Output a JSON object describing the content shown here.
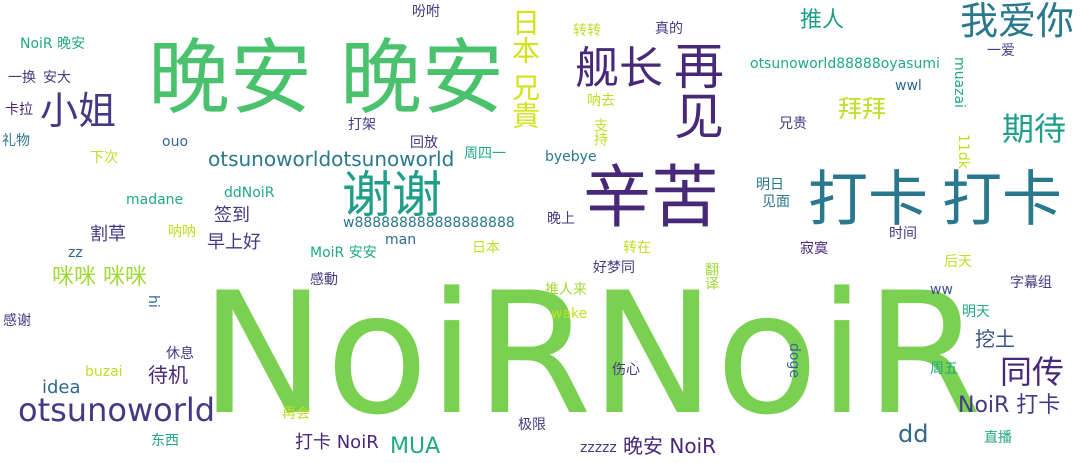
{
  "palette": {
    "light_green": "#7ad151",
    "green": "#4ac16d",
    "teal_green": "#22a884",
    "teal": "#1f9e89",
    "blue_teal": "#2a788e",
    "slate": "#31688e",
    "dark_purple": "#482878",
    "indigo": "#443983",
    "yellow_green": "#bddf26",
    "yellow": "#d2e21b",
    "lime": "#a0da39",
    "steel": "#3b528b"
  },
  "words": [
    {
      "text": "NoiR",
      "color": "light_green",
      "orientation": "horizontal"
    },
    {
      "text": "NoiR",
      "color": "light_green",
      "orientation": "horizontal"
    },
    {
      "text": "晚安",
      "color": "green",
      "orientation": "horizontal"
    },
    {
      "text": "晚安",
      "color": "green",
      "orientation": "horizontal"
    },
    {
      "text": "辛苦",
      "color": "dark_purple",
      "orientation": "horizontal"
    },
    {
      "text": "打卡",
      "color": "blue_teal",
      "orientation": "horizontal"
    },
    {
      "text": "打卡",
      "color": "blue_teal",
      "orientation": "horizontal"
    },
    {
      "text": "谢谢",
      "color": "teal",
      "orientation": "horizontal"
    },
    {
      "text": "再见",
      "color": "dark_purple",
      "orientation": "vertical"
    },
    {
      "text": "舰长",
      "color": "dark_purple",
      "orientation": "horizontal"
    },
    {
      "text": "我爱你",
      "color": "blue_teal",
      "orientation": "horizontal"
    },
    {
      "text": "日本 兄貴",
      "color": "yellow",
      "orientation": "vertical"
    },
    {
      "text": "小姐",
      "color": "indigo",
      "orientation": "horizontal"
    },
    {
      "text": "期待",
      "color": "teal",
      "orientation": "horizontal"
    },
    {
      "text": "同传",
      "color": "dark_purple",
      "orientation": "horizontal"
    },
    {
      "text": "otsunoworld",
      "color": "indigo",
      "orientation": "horizontal"
    },
    {
      "text": "otsunoworldotsunoworld",
      "color": "blue_teal",
      "orientation": "horizontal"
    },
    {
      "text": "咪咪 咪咪",
      "color": "lime",
      "orientation": "horizontal"
    },
    {
      "text": "拜拜",
      "color": "yellow_green",
      "orientation": "horizontal"
    },
    {
      "text": "推人",
      "color": "teal",
      "orientation": "horizontal"
    },
    {
      "text": "NoiR 打卡",
      "color": "indigo",
      "orientation": "horizontal"
    },
    {
      "text": "dd",
      "color": "slate",
      "orientation": "horizontal"
    },
    {
      "text": "挖土",
      "color": "steel",
      "orientation": "horizontal"
    },
    {
      "text": "晚安 NoiR",
      "color": "dark_purple",
      "orientation": "horizontal"
    },
    {
      "text": "打卡 NoiR",
      "color": "dark_purple",
      "orientation": "horizontal"
    },
    {
      "text": "MUA",
      "color": "teal_green",
      "orientation": "horizontal"
    },
    {
      "text": "待机",
      "color": "dark_purple",
      "orientation": "horizontal"
    },
    {
      "text": "idea",
      "color": "slate",
      "orientation": "horizontal"
    },
    {
      "text": "割草",
      "color": "indigo",
      "orientation": "horizontal"
    },
    {
      "text": "早上好",
      "color": "indigo",
      "orientation": "horizontal"
    },
    {
      "text": "签到",
      "color": "indigo",
      "orientation": "horizontal"
    },
    {
      "text": "otsunoworld88888oyasumi",
      "color": "teal_green",
      "orientation": "horizontal"
    },
    {
      "text": "w888888888888888888",
      "color": "blue_teal",
      "orientation": "horizontal"
    },
    {
      "text": "NoiR 晚安",
      "color": "teal_green",
      "orientation": "horizontal"
    },
    {
      "text": "一换",
      "color": "indigo",
      "orientation": "horizontal"
    },
    {
      "text": "安大",
      "color": "indigo",
      "orientation": "horizontal"
    },
    {
      "text": "卡拉",
      "color": "dark_purple",
      "orientation": "horizontal"
    },
    {
      "text": "礼物",
      "color": "blue_teal",
      "orientation": "horizontal"
    },
    {
      "text": "下次",
      "color": "yellow_green",
      "orientation": "horizontal"
    },
    {
      "text": "ouo",
      "color": "slate",
      "orientation": "horizontal"
    },
    {
      "text": "打架",
      "color": "indigo",
      "orientation": "horizontal"
    },
    {
      "text": "回放",
      "color": "indigo",
      "orientation": "horizontal"
    },
    {
      "text": "周四一",
      "color": "teal_green",
      "orientation": "horizontal"
    },
    {
      "text": "byebye",
      "color": "blue_teal",
      "orientation": "horizontal"
    },
    {
      "text": "madane",
      "color": "teal_green",
      "orientation": "horizontal"
    },
    {
      "text": "ddNoiR",
      "color": "teal_green",
      "orientation": "horizontal"
    },
    {
      "text": "吩咐",
      "color": "indigo",
      "orientation": "horizontal"
    },
    {
      "text": "转转",
      "color": "yellow_green",
      "orientation": "horizontal"
    },
    {
      "text": "真的",
      "color": "indigo",
      "orientation": "horizontal"
    },
    {
      "text": "呐去",
      "color": "yellow_green",
      "orientation": "horizontal"
    },
    {
      "text": "支持",
      "color": "yellow_green",
      "orientation": "vertical"
    },
    {
      "text": "兄贵",
      "color": "indigo",
      "orientation": "horizontal"
    },
    {
      "text": "wwl",
      "color": "slate",
      "orientation": "horizontal"
    },
    {
      "text": "muazai",
      "color": "teal_green",
      "orientation": "vertical"
    },
    {
      "text": "一爱",
      "color": "indigo",
      "orientation": "horizontal"
    },
    {
      "text": "11dk",
      "color": "yellow_green",
      "orientation": "vertical"
    },
    {
      "text": "明日",
      "color": "blue_teal",
      "orientation": "horizontal"
    },
    {
      "text": "见面",
      "color": "blue_teal",
      "orientation": "horizontal"
    },
    {
      "text": "晚上",
      "color": "indigo",
      "orientation": "horizontal"
    },
    {
      "text": "呐呐",
      "color": "yellow_green",
      "orientation": "horizontal"
    },
    {
      "text": "zz",
      "color": "slate",
      "orientation": "horizontal"
    },
    {
      "text": "MoiR 安安",
      "color": "teal_green",
      "orientation": "horizontal"
    },
    {
      "text": "man",
      "color": "slate",
      "orientation": "horizontal"
    },
    {
      "text": "日本",
      "color": "yellow_green",
      "orientation": "horizontal"
    },
    {
      "text": "转在",
      "color": "yellow_green",
      "orientation": "horizontal"
    },
    {
      "text": "寂寞",
      "color": "dark_purple",
      "orientation": "horizontal"
    },
    {
      "text": "时间",
      "color": "indigo",
      "orientation": "horizontal"
    },
    {
      "text": "后天",
      "color": "yellow_green",
      "orientation": "horizontal"
    },
    {
      "text": "好梦同",
      "color": "indigo",
      "orientation": "horizontal"
    },
    {
      "text": "翻译",
      "color": "lime",
      "orientation": "vertical"
    },
    {
      "text": "感動",
      "color": "indigo",
      "orientation": "horizontal"
    },
    {
      "text": "hi",
      "color": "slate",
      "orientation": "vertical"
    },
    {
      "text": "推人来",
      "color": "lime",
      "orientation": "horizontal"
    },
    {
      "text": "ww",
      "color": "steel",
      "orientation": "horizontal"
    },
    {
      "text": "字幕组",
      "color": "indigo",
      "orientation": "horizontal"
    },
    {
      "text": "感谢",
      "color": "indigo",
      "orientation": "horizontal"
    },
    {
      "text": "wake",
      "color": "yellow_green",
      "orientation": "horizontal"
    },
    {
      "text": "明天",
      "color": "teal_green",
      "orientation": "horizontal"
    },
    {
      "text": "休息",
      "color": "indigo",
      "orientation": "horizontal"
    },
    {
      "text": "doge",
      "color": "slate",
      "orientation": "vertical"
    },
    {
      "text": "buzai",
      "color": "yellow_green",
      "orientation": "horizontal"
    },
    {
      "text": "伤心",
      "color": "indigo",
      "orientation": "horizontal"
    },
    {
      "text": "周五",
      "color": "teal_green",
      "orientation": "horizontal"
    },
    {
      "text": "再会",
      "color": "yellow_green",
      "orientation": "horizontal"
    },
    {
      "text": "东西",
      "color": "teal_green",
      "orientation": "horizontal"
    },
    {
      "text": "极限",
      "color": "indigo",
      "orientation": "horizontal"
    },
    {
      "text": "zzzzz",
      "color": "indigo",
      "orientation": "horizontal"
    },
    {
      "text": "直播",
      "color": "teal_green",
      "orientation": "horizontal"
    }
  ]
}
